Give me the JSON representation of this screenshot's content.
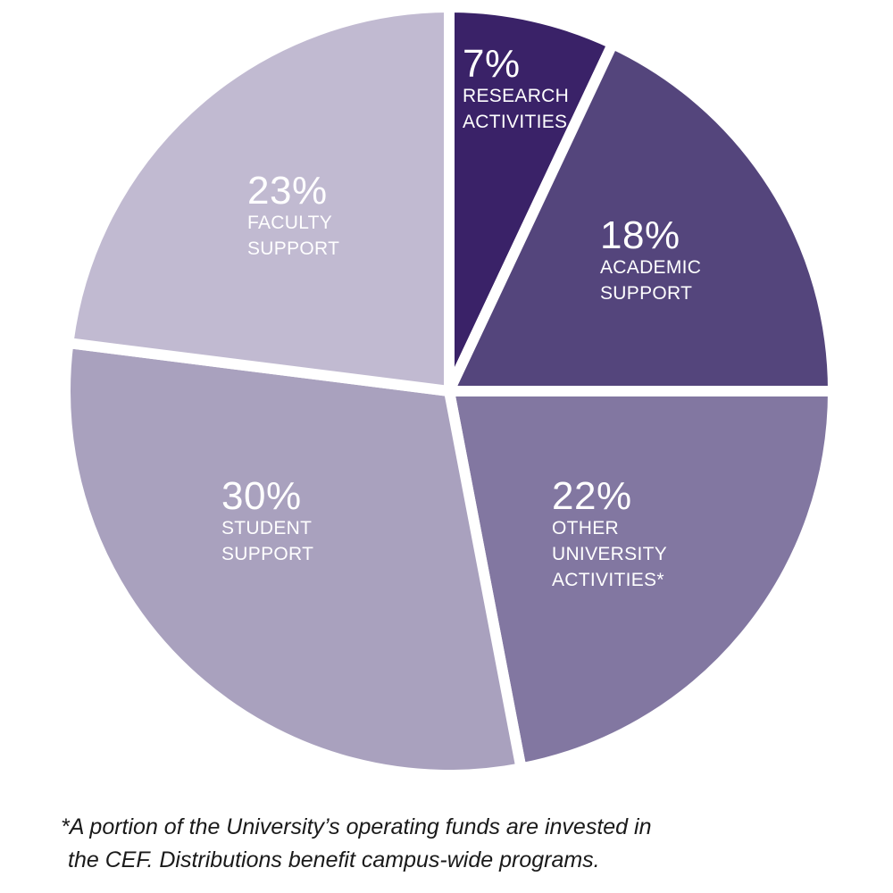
{
  "chart_data": {
    "type": "pie",
    "start_angle_deg": 0,
    "direction": "clockwise",
    "slices": [
      {
        "value": 7,
        "pct_label": "7%",
        "lines": [
          "RESEARCH",
          "ACTIVITIES"
        ],
        "color": "#3a2268"
      },
      {
        "value": 18,
        "pct_label": "18%",
        "lines": [
          "ACADEMIC",
          "SUPPORT"
        ],
        "color": "#54457c"
      },
      {
        "value": 22,
        "pct_label": "22%",
        "lines": [
          "OTHER",
          "UNIVERSITY",
          "ACTIVITIES*"
        ],
        "color": "#8277a1"
      },
      {
        "value": 30,
        "pct_label": "30%",
        "lines": [
          "STUDENT",
          "SUPPORT"
        ],
        "color": "#a9a1be"
      },
      {
        "value": 23,
        "pct_label": "23%",
        "lines": [
          "FACULTY",
          "SUPPORT"
        ],
        "color": "#c1bad1"
      }
    ]
  },
  "footnote": {
    "line1": "*A portion of the University’s operating funds are invested in",
    "line2": "the CEF. Distributions benefit campus-wide programs."
  }
}
